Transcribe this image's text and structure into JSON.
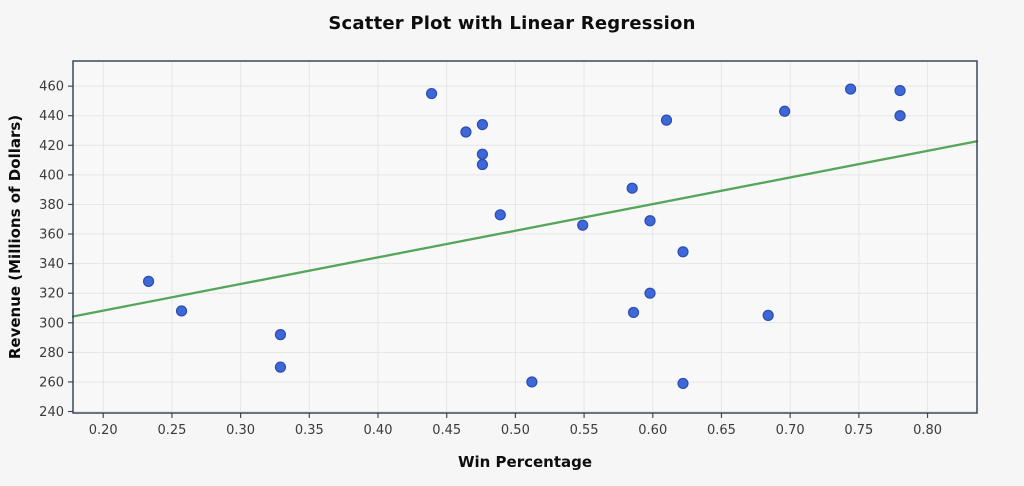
{
  "colors": {
    "background": "#f6f6f6",
    "plot_background": "#f8f8f9",
    "grid": "#e6e6e6",
    "axis_border": "#2f3b52",
    "tick_mark": "#4a4a4a",
    "tick_label": "#3b3b3b",
    "text": "#0d0d0d",
    "marker_fill": "#3e68d8",
    "marker_edge": "#2b4db0",
    "regression_line": "#55a65a"
  },
  "chart_data": {
    "type": "scatter",
    "title": "Scatter Plot with Linear Regression",
    "xlabel": "Win Percentage",
    "ylabel": "Revenue (Millions of Dollars)",
    "xlim": [
      0.178,
      0.836
    ],
    "ylim": [
      239,
      477
    ],
    "x_ticks": [
      0.2,
      0.25,
      0.3,
      0.35,
      0.4,
      0.45,
      0.5,
      0.55,
      0.6,
      0.65,
      0.7,
      0.75,
      0.8
    ],
    "y_ticks": [
      240,
      260,
      280,
      300,
      320,
      340,
      360,
      380,
      400,
      420,
      440,
      460
    ],
    "grid": true,
    "legend": "none",
    "points": [
      {
        "x": 0.233,
        "y": 328
      },
      {
        "x": 0.257,
        "y": 308
      },
      {
        "x": 0.329,
        "y": 292
      },
      {
        "x": 0.329,
        "y": 270
      },
      {
        "x": 0.439,
        "y": 455
      },
      {
        "x": 0.464,
        "y": 429
      },
      {
        "x": 0.476,
        "y": 434
      },
      {
        "x": 0.476,
        "y": 414
      },
      {
        "x": 0.476,
        "y": 407
      },
      {
        "x": 0.489,
        "y": 373
      },
      {
        "x": 0.512,
        "y": 260
      },
      {
        "x": 0.549,
        "y": 366
      },
      {
        "x": 0.585,
        "y": 391
      },
      {
        "x": 0.586,
        "y": 307
      },
      {
        "x": 0.598,
        "y": 369
      },
      {
        "x": 0.598,
        "y": 320
      },
      {
        "x": 0.61,
        "y": 437
      },
      {
        "x": 0.622,
        "y": 348
      },
      {
        "x": 0.622,
        "y": 259
      },
      {
        "x": 0.684,
        "y": 305
      },
      {
        "x": 0.696,
        "y": 443
      },
      {
        "x": 0.744,
        "y": 458
      },
      {
        "x": 0.78,
        "y": 457
      },
      {
        "x": 0.78,
        "y": 440
      }
    ],
    "regression_line": {
      "slope": 180.1,
      "intercept": 272.2,
      "x_start": 0.178,
      "x_end": 0.836
    }
  }
}
